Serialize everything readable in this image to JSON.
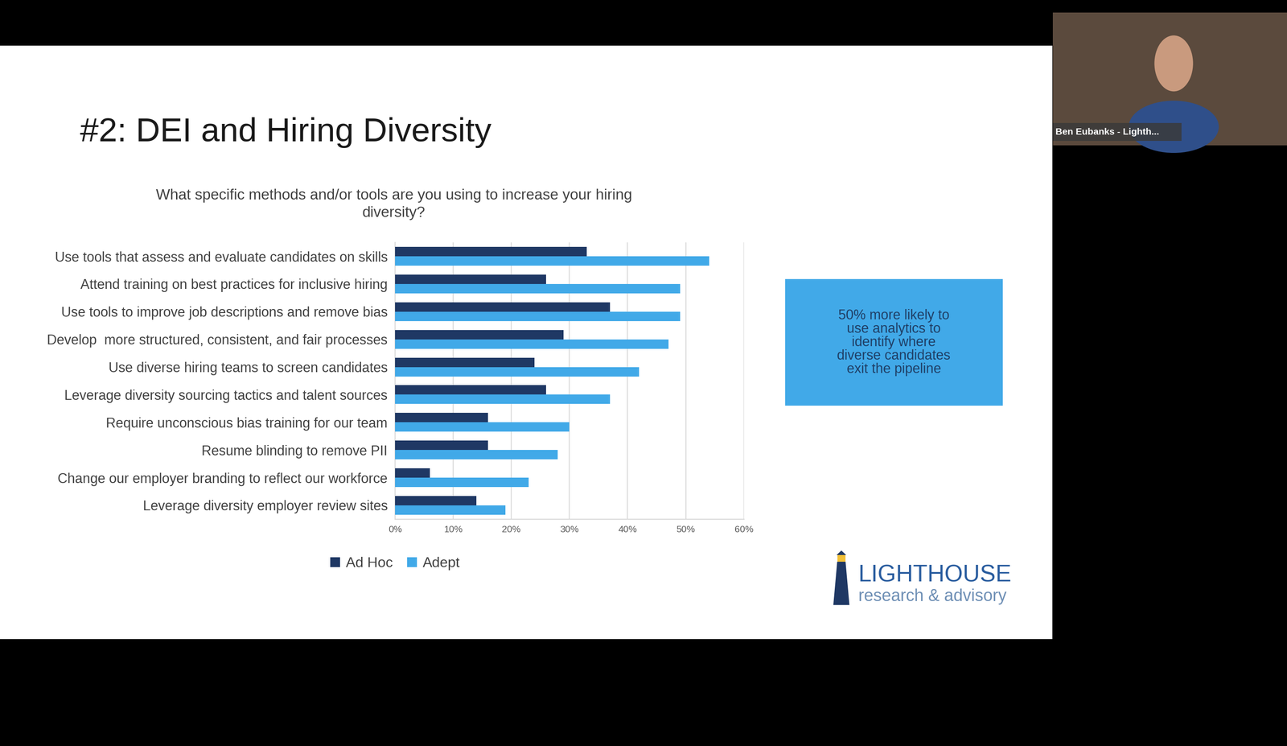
{
  "slide_title": "#2: DEI and Hiring Diversity",
  "chart_data": {
    "type": "bar",
    "orientation": "horizontal",
    "title": "What specific methods and/or tools are you using to increase your hiring diversity?",
    "categories": [
      "Use tools that assess and evaluate candidates on skills",
      "Attend training on best practices for inclusive hiring",
      "Use tools to improve job descriptions and remove bias",
      "Develop  more structured, consistent, and fair processes",
      "Use diverse hiring teams to screen candidates",
      "Leverage diversity sourcing tactics and talent sources",
      "Require unconscious bias training for our team",
      "Resume blinding to remove PII",
      "Change our employer branding to reflect our workforce",
      "Leverage diversity employer review sites"
    ],
    "series": [
      {
        "name": "Ad Hoc",
        "color": "#1f3864",
        "values": [
          33,
          26,
          37,
          29,
          24,
          26,
          16,
          16,
          6,
          14
        ]
      },
      {
        "name": "Adept",
        "color": "#41a9e8",
        "values": [
          54,
          49,
          49,
          47,
          42,
          37,
          30,
          28,
          23,
          19
        ]
      }
    ],
    "xlim": [
      0,
      60
    ],
    "xticks": [
      {
        "value": 0,
        "label": "0%"
      },
      {
        "value": 10,
        "label": "10%"
      },
      {
        "value": 20,
        "label": "20%"
      },
      {
        "value": 30,
        "label": "30%"
      },
      {
        "value": 40,
        "label": "40%"
      },
      {
        "value": 50,
        "label": "50%"
      },
      {
        "value": 60,
        "label": "60%"
      }
    ],
    "grid": true,
    "legend": "upper center"
  },
  "callout": "50% more likely to use analytics to identify where diverse candidates exit the pipeline",
  "logo": {
    "name": "LIGHTHOUSE",
    "tagline": "research & advisory"
  },
  "speaker": "Ben Eubanks - Lighth..."
}
